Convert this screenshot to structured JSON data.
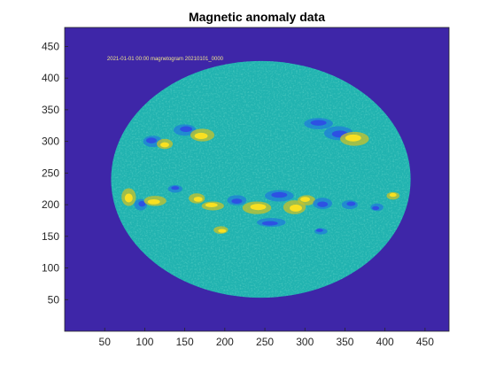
{
  "chart_data": {
    "type": "heatmap",
    "title": "Magnetic anomaly data",
    "xlabel": "",
    "ylabel": "",
    "xlim": [
      0,
      480
    ],
    "ylim": [
      0,
      480
    ],
    "y_direction": "normal",
    "x_ticks": [
      50,
      100,
      150,
      200,
      250,
      300,
      350,
      400,
      450
    ],
    "y_ticks": [
      50,
      100,
      150,
      200,
      250,
      300,
      350,
      400,
      450
    ],
    "grid": false,
    "legend": "none",
    "colormap": "parula",
    "colors": {
      "background": "#3e26a8",
      "field": "#21b3b0",
      "positive": "#f9e021",
      "positive_mid": "#c8c22a",
      "negative": "#2d51e3",
      "negative_mid": "#1f7ed9",
      "header_text": "#f0e68c"
    },
    "disk": {
      "center": [
        245,
        240
      ],
      "radius_x": 187,
      "radius_y": 187
    },
    "header_annotation": "2021-01-01 00:00 magnetogram  20210101_0000",
    "regions": [
      {
        "x": 110,
        "y": 300,
        "rx": 12,
        "ry": 9,
        "polarity": "negative"
      },
      {
        "x": 125,
        "y": 296,
        "rx": 10,
        "ry": 8,
        "polarity": "positive"
      },
      {
        "x": 150,
        "y": 318,
        "rx": 14,
        "ry": 9,
        "polarity": "negative"
      },
      {
        "x": 172,
        "y": 310,
        "rx": 15,
        "ry": 10,
        "polarity": "positive"
      },
      {
        "x": 317,
        "y": 328,
        "rx": 18,
        "ry": 9,
        "polarity": "negative"
      },
      {
        "x": 342,
        "y": 313,
        "rx": 18,
        "ry": 11,
        "polarity": "negative"
      },
      {
        "x": 362,
        "y": 304,
        "rx": 18,
        "ry": 11,
        "polarity": "positive"
      },
      {
        "x": 80,
        "y": 212,
        "rx": 9,
        "ry": 14,
        "polarity": "positive"
      },
      {
        "x": 95,
        "y": 200,
        "rx": 8,
        "ry": 9,
        "polarity": "negative"
      },
      {
        "x": 113,
        "y": 206,
        "rx": 14,
        "ry": 8,
        "polarity": "positive"
      },
      {
        "x": 138,
        "y": 225,
        "rx": 9,
        "ry": 6,
        "polarity": "negative"
      },
      {
        "x": 165,
        "y": 210,
        "rx": 10,
        "ry": 8,
        "polarity": "positive"
      },
      {
        "x": 185,
        "y": 198,
        "rx": 14,
        "ry": 7,
        "polarity": "positive"
      },
      {
        "x": 215,
        "y": 207,
        "rx": 12,
        "ry": 8,
        "polarity": "negative"
      },
      {
        "x": 240,
        "y": 195,
        "rx": 18,
        "ry": 10,
        "polarity": "positive"
      },
      {
        "x": 258,
        "y": 172,
        "rx": 18,
        "ry": 7,
        "polarity": "negative"
      },
      {
        "x": 268,
        "y": 214,
        "rx": 18,
        "ry": 9,
        "polarity": "negative"
      },
      {
        "x": 287,
        "y": 196,
        "rx": 14,
        "ry": 11,
        "polarity": "positive"
      },
      {
        "x": 302,
        "y": 207,
        "rx": 11,
        "ry": 8,
        "polarity": "positive"
      },
      {
        "x": 322,
        "y": 202,
        "rx": 12,
        "ry": 9,
        "polarity": "negative"
      },
      {
        "x": 356,
        "y": 200,
        "rx": 10,
        "ry": 7,
        "polarity": "negative"
      },
      {
        "x": 390,
        "y": 196,
        "rx": 8,
        "ry": 6,
        "polarity": "negative"
      },
      {
        "x": 410,
        "y": 214,
        "rx": 8,
        "ry": 6,
        "polarity": "positive"
      },
      {
        "x": 195,
        "y": 160,
        "rx": 9,
        "ry": 6,
        "polarity": "positive"
      },
      {
        "x": 320,
        "y": 158,
        "rx": 8,
        "ry": 5,
        "polarity": "negative"
      }
    ]
  }
}
